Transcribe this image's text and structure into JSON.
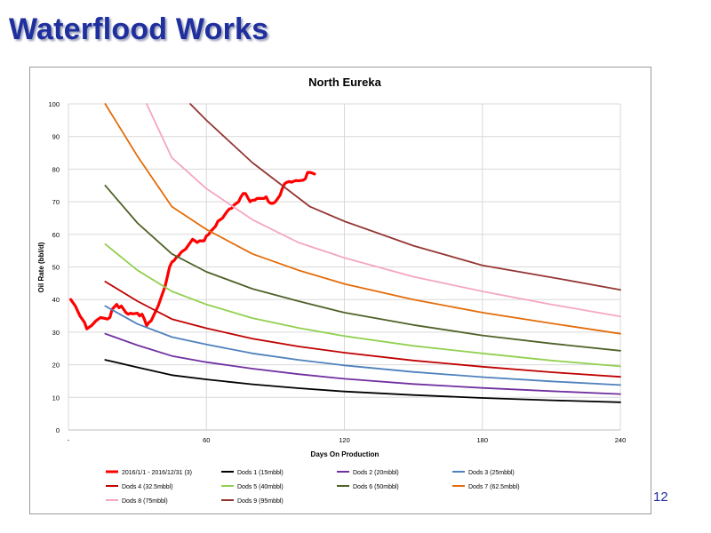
{
  "slide": {
    "title": "Waterflood Works",
    "page_number": "12"
  },
  "chart_data": {
    "type": "line",
    "title": "North Eureka",
    "xlabel": "Days On Production",
    "ylabel": "Oil Rate (bbl/d)",
    "xlim": [
      0,
      240
    ],
    "ylim": [
      0,
      100
    ],
    "xticks": [
      0,
      60,
      120,
      180,
      240
    ],
    "xtick_labels": [
      "-",
      "60",
      "120",
      "180",
      "240"
    ],
    "yticks": [
      0,
      10,
      20,
      30,
      40,
      50,
      60,
      70,
      80,
      90,
      100
    ],
    "ytick_labels": [
      "0",
      "10",
      "20",
      "30",
      "40",
      "50",
      "60",
      "70",
      "80",
      "90",
      "100"
    ],
    "grid": true,
    "legend_position": "bottom",
    "series": [
      {
        "name": "2016/1/1 - 2016/12/31 (3)",
        "color": "#ff0000",
        "width": 3.2,
        "x": [
          1,
          3,
          5,
          7,
          8,
          10,
          12,
          14,
          16,
          17,
          18,
          19,
          21,
          22,
          23,
          24,
          25,
          26,
          27,
          28,
          30,
          31,
          32,
          33,
          34,
          35,
          36,
          37,
          39,
          40,
          42,
          43,
          44,
          45,
          46,
          47,
          48,
          49,
          50,
          51,
          52,
          53,
          54,
          55,
          56,
          57,
          59,
          60,
          61,
          62,
          64,
          65,
          66,
          67,
          68,
          69,
          70,
          71,
          72,
          74,
          75,
          76,
          77,
          79,
          80,
          81,
          82,
          84,
          85,
          86,
          87,
          88,
          89,
          90,
          92,
          93,
          94,
          95,
          96,
          97,
          98,
          99,
          100,
          101,
          102,
          103,
          104,
          105,
          106,
          107
        ],
        "y": [
          40,
          38,
          35,
          33,
          31,
          32,
          33.5,
          34.5,
          34.2,
          34,
          34.5,
          37,
          38.5,
          37.5,
          38,
          37,
          36,
          35.5,
          35.8,
          35.6,
          35.8,
          35,
          35.5,
          34,
          32,
          33,
          33.5,
          35,
          38,
          40,
          44,
          47,
          50,
          51.5,
          52,
          53,
          53.5,
          54.5,
          55,
          55.5,
          56.5,
          57.5,
          58.5,
          58,
          57.5,
          58,
          58,
          59.5,
          60,
          61,
          62.5,
          64,
          64.5,
          65,
          66,
          67,
          67.8,
          68,
          69,
          70,
          71.5,
          72.5,
          72.5,
          70,
          70.5,
          70.5,
          71,
          71,
          71,
          71.5,
          70,
          69.5,
          69.5,
          70,
          72,
          74,
          75.5,
          76,
          76.2,
          76,
          76.3,
          76.5,
          76.4,
          76.5,
          76.6,
          77,
          79,
          79,
          78.8,
          78.5
        ]
      },
      {
        "name": "Dods 1 (15mbbl)",
        "color": "#000000",
        "width": 1.8,
        "x": [
          16,
          30,
          45,
          60,
          80,
          100,
          120,
          150,
          180,
          210,
          240
        ],
        "y": [
          21.5,
          19.2,
          16.8,
          15.5,
          14.0,
          12.8,
          11.8,
          10.7,
          9.8,
          9.1,
          8.5
        ]
      },
      {
        "name": "Dods 2 (20mbbl)",
        "color": "#7030a0",
        "width": 1.8,
        "x": [
          16,
          30,
          45,
          60,
          80,
          100,
          120,
          150,
          180,
          210,
          240
        ],
        "y": [
          29.5,
          26.0,
          22.7,
          20.8,
          18.8,
          17.1,
          15.7,
          14.1,
          12.9,
          11.9,
          11.0
        ]
      },
      {
        "name": "Dods 3 (25mbbl)",
        "color": "#4f81bd",
        "width": 1.8,
        "x": [
          16,
          30,
          45,
          60,
          80,
          100,
          120,
          150,
          180,
          210,
          240
        ],
        "y": [
          38.0,
          32.5,
          28.5,
          26.2,
          23.5,
          21.5,
          19.8,
          17.8,
          16.2,
          14.9,
          13.8
        ]
      },
      {
        "name": "Dods 4 (32.5mbbl)",
        "color": "#c00000",
        "width": 1.8,
        "x": [
          16,
          30,
          45,
          60,
          80,
          100,
          120,
          150,
          180,
          210,
          240
        ],
        "y": [
          45.5,
          39.5,
          34.0,
          31.2,
          28.0,
          25.6,
          23.7,
          21.3,
          19.4,
          17.7,
          16.3
        ]
      },
      {
        "name": "Dods 5 (40mbbl)",
        "color": "#92d050",
        "width": 1.8,
        "x": [
          16,
          30,
          45,
          60,
          80,
          100,
          120,
          150,
          180,
          210,
          240
        ],
        "y": [
          57.0,
          49.0,
          42.5,
          38.5,
          34.3,
          31.3,
          28.8,
          25.8,
          23.5,
          21.3,
          19.5
        ]
      },
      {
        "name": "Dods 6 (50mbbl)",
        "color": "#4f6228",
        "width": 1.8,
        "x": [
          16,
          30,
          45,
          60,
          80,
          100,
          120,
          150,
          180,
          210,
          240
        ],
        "y": [
          75.0,
          63.5,
          54.0,
          48.5,
          43.3,
          39.5,
          36.0,
          32.2,
          29.0,
          26.5,
          24.3
        ]
      },
      {
        "name": "Dods 7 (62.5mbbl)",
        "color": "#e36c09",
        "width": 1.8,
        "x": [
          16,
          30,
          45,
          60,
          80,
          100,
          120,
          150,
          180,
          210,
          240
        ],
        "y": [
          100.0,
          84.0,
          68.5,
          61.5,
          54.0,
          49.0,
          44.8,
          40.0,
          36.0,
          32.7,
          29.5
        ]
      },
      {
        "name": "Dods 8 (75mbbl)",
        "color": "#f4a6c4",
        "width": 1.8,
        "x": [
          34,
          45,
          60,
          80,
          100,
          120,
          150,
          180,
          210,
          240
        ],
        "y": [
          100.0,
          83.5,
          74.0,
          64.5,
          57.5,
          52.8,
          47.0,
          42.5,
          38.5,
          34.8
        ]
      },
      {
        "name": "Dods 9 (95mbbl)",
        "color": "#943634",
        "width": 1.8,
        "x": [
          53,
          60,
          80,
          105,
          120,
          150,
          180,
          210,
          240
        ],
        "y": [
          100.0,
          95.0,
          82.0,
          68.5,
          64.0,
          56.5,
          50.5,
          46.8,
          43.0
        ]
      }
    ]
  }
}
